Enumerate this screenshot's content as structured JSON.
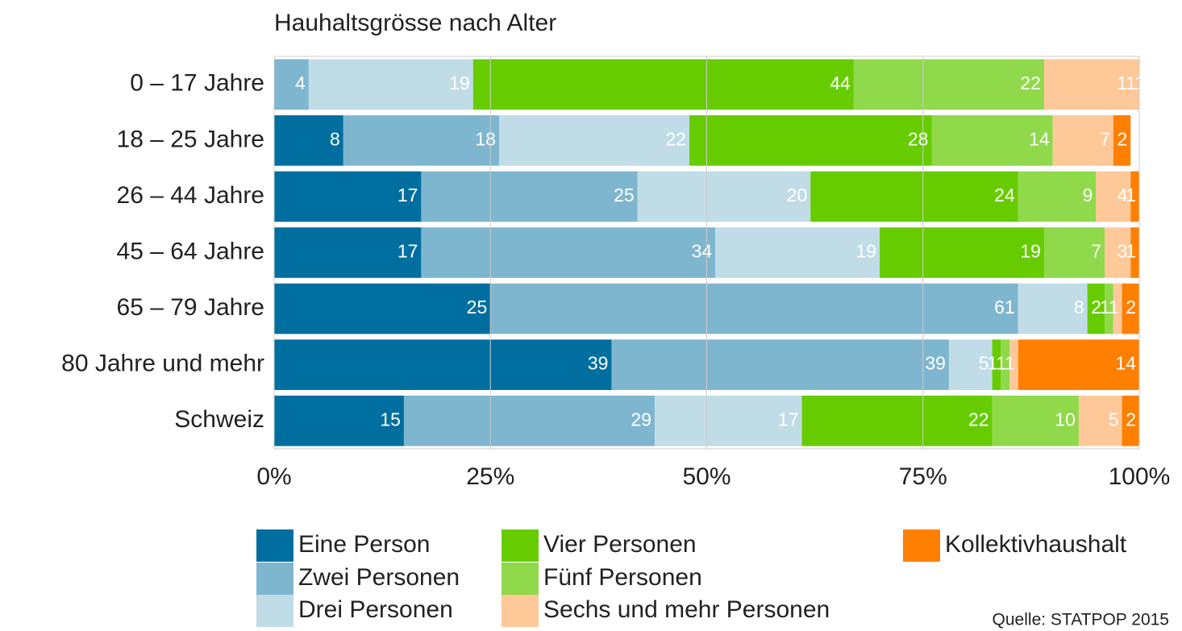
{
  "chart_data": {
    "type": "stacked-bar-horizontal",
    "title": "Hauhaltsgrösse nach Alter",
    "source": "Quelle: STATPOP 2015",
    "categories": [
      "0 – 17 Jahre",
      "18 – 25 Jahre",
      "26 – 44 Jahre",
      "45 – 64 Jahre",
      "65 – 79 Jahre",
      "80 Jahre und mehr",
      "Schweiz"
    ],
    "series": [
      {
        "name": "Eine Person",
        "color": "#006fa0",
        "values": [
          0,
          8,
          17,
          17,
          25,
          39,
          15
        ]
      },
      {
        "name": "Zwei Personen",
        "color": "#7fb6cf",
        "values": [
          4,
          18,
          25,
          34,
          61,
          39,
          29
        ]
      },
      {
        "name": "Drei Personen",
        "color": "#c0dce7",
        "values": [
          19,
          22,
          20,
          19,
          8,
          5,
          17
        ]
      },
      {
        "name": "Vier Personen",
        "color": "#66cc00",
        "values": [
          44,
          28,
          24,
          19,
          2,
          1,
          22
        ]
      },
      {
        "name": "Fünf Personen",
        "color": "#8fd94a",
        "values": [
          22,
          14,
          9,
          7,
          1,
          1,
          10
        ]
      },
      {
        "name": "Sechs und mehr Personen",
        "color": "#ffc899",
        "values": [
          11,
          7,
          4,
          3,
          1,
          1,
          5
        ]
      },
      {
        "name": "Kollektivhaushalt",
        "color": "#ff8000",
        "values": [
          1,
          2,
          1,
          1,
          2,
          14,
          2
        ]
      }
    ],
    "xlim": [
      0,
      100
    ],
    "xticks": [
      {
        "value": 0,
        "label": "0%"
      },
      {
        "value": 25,
        "label": "25%"
      },
      {
        "value": 50,
        "label": "50%"
      },
      {
        "value": 75,
        "label": "75%"
      },
      {
        "value": 100,
        "label": "100%"
      }
    ],
    "grid": true
  }
}
